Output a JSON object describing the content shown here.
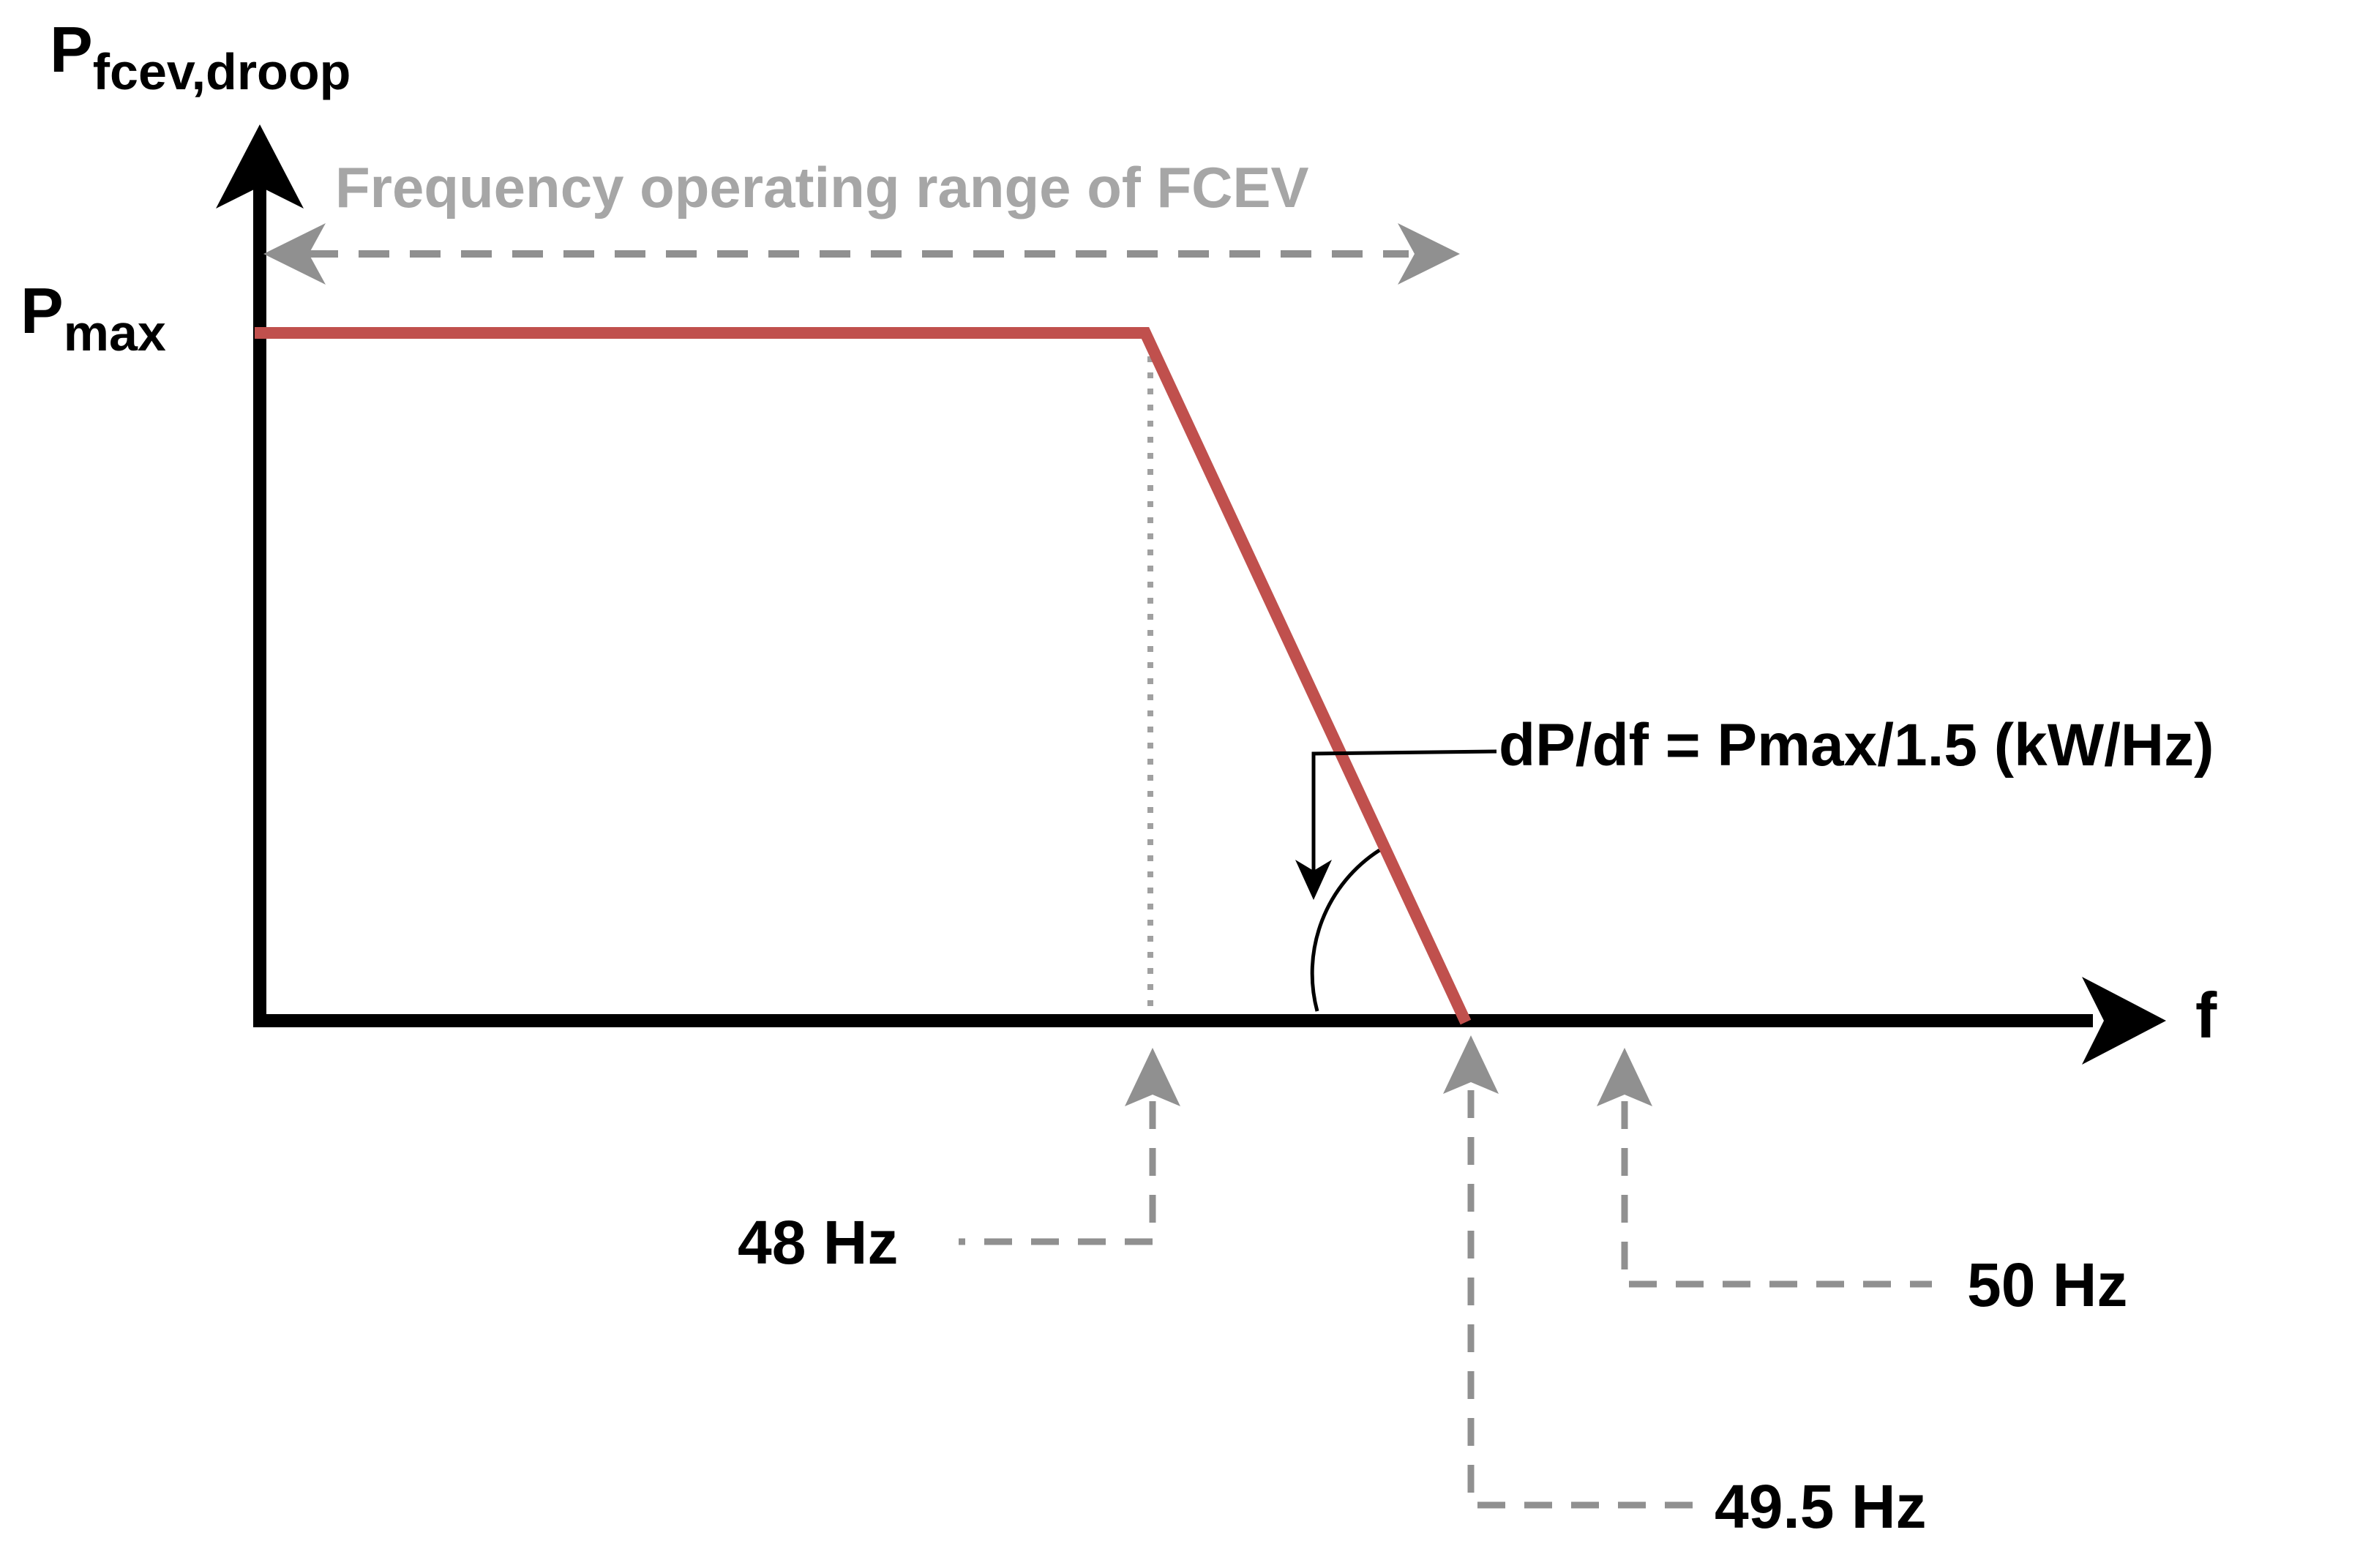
{
  "colors": {
    "axis": "#000000",
    "curve": "#c0504d",
    "guide": "#909090",
    "range_text": "#a6a6a6"
  },
  "y_axis": {
    "label_main": "P",
    "label_sub": "fcev,droop"
  },
  "x_axis": {
    "label": "f"
  },
  "pmax": {
    "label_main": "P",
    "label_sub": "max"
  },
  "range_label": "Frequency operating range of FCEV",
  "slope_label": "dP/df = Pmax/1.5 (kW/Hz)",
  "markers": {
    "f48": "48 Hz",
    "f495": "49.5 Hz",
    "f50": "50 Hz"
  },
  "droop_curve": [
    {
      "f": 48,
      "p": "Pmax"
    },
    {
      "f": 49.5,
      "p": 0
    }
  ]
}
